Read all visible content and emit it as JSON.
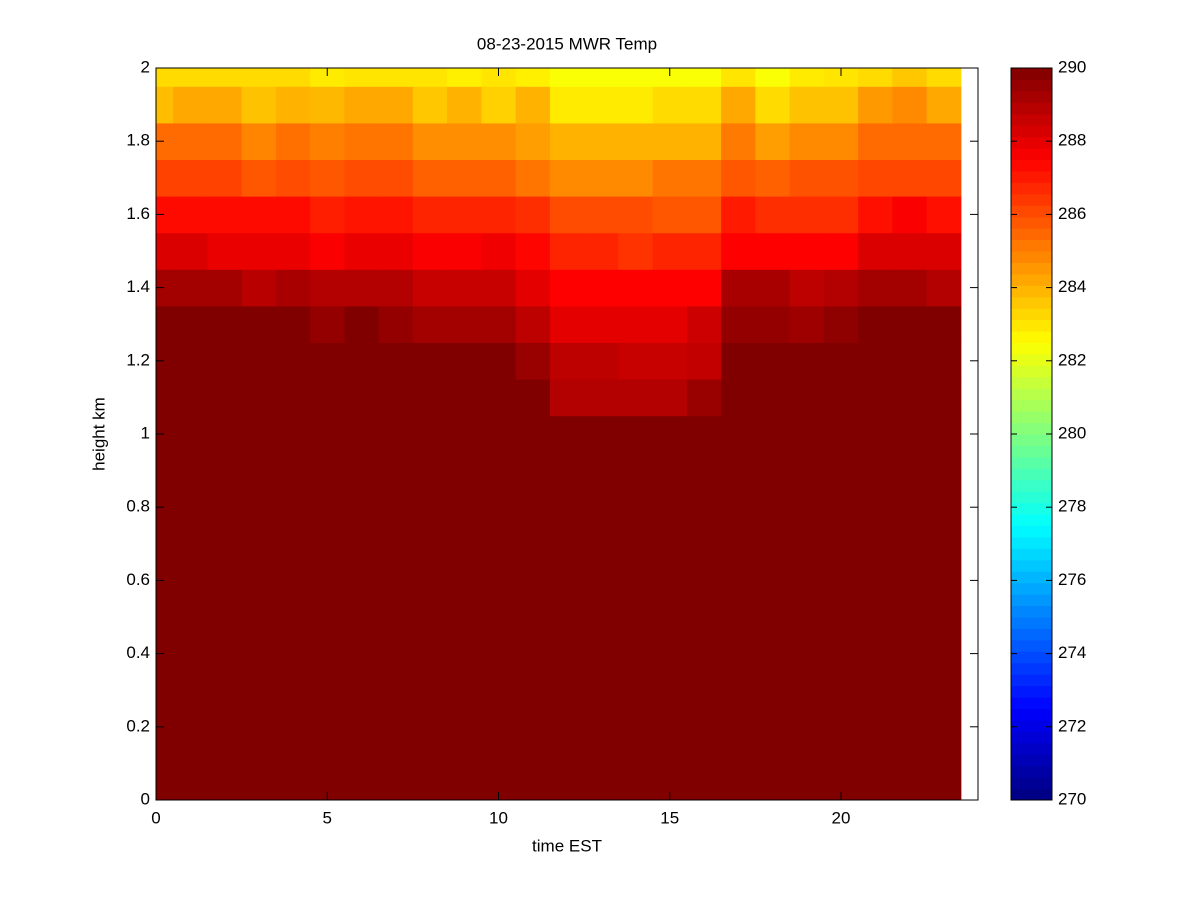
{
  "chart_data": {
    "type": "heatmap",
    "title": "08-23-2015 MWR Temp",
    "x_label": "time EST",
    "y_label": "height km",
    "xlim": [
      0,
      24
    ],
    "xticks": [
      0,
      5,
      10,
      15,
      20
    ],
    "ylim": [
      0,
      2
    ],
    "yticks": [
      0,
      0.2,
      0.4,
      0.6,
      0.8,
      1,
      1.2,
      1.4,
      1.6,
      1.8,
      2
    ],
    "x_edges": [
      0,
      0.5,
      1.5,
      2.5,
      3.5,
      4.5,
      5.5,
      6.5,
      7.5,
      8.5,
      9.5,
      10.5,
      11.5,
      12.5,
      13.5,
      14.5,
      15.5,
      16.5,
      17.5,
      18.5,
      19.5,
      20.5,
      21.5,
      22.5,
      23.5
    ],
    "y_edges": [
      0,
      1.05,
      1.15,
      1.25,
      1.35,
      1.45,
      1.55,
      1.65,
      1.75,
      1.85,
      1.95,
      2
    ],
    "colormap": "jet",
    "clim": [
      270,
      290
    ],
    "cticks": [
      270,
      272,
      274,
      276,
      278,
      280,
      282,
      284,
      286,
      288,
      290
    ],
    "z": [
      [
        290,
        290,
        290,
        290,
        290,
        290,
        290,
        290,
        290,
        290,
        290,
        290,
        290,
        290,
        290,
        290,
        290,
        290,
        290,
        290,
        290,
        290,
        290,
        290
      ],
      [
        290,
        290,
        290,
        290,
        290,
        290,
        290,
        290,
        290,
        290,
        290,
        290,
        289,
        289,
        289,
        289,
        289.5,
        290,
        290,
        290,
        290,
        290,
        290,
        290
      ],
      [
        290,
        290,
        290,
        290,
        290,
        290,
        290,
        290,
        290,
        290,
        290,
        289.5,
        288.8,
        288.8,
        288.6,
        288.6,
        288.7,
        290,
        290,
        290,
        290,
        290,
        290,
        290
      ],
      [
        290,
        290,
        290,
        290,
        290,
        289.6,
        290,
        289.6,
        289.3,
        289.3,
        289.3,
        288.8,
        288,
        288,
        288,
        288,
        288.5,
        289.6,
        289.6,
        289.4,
        289.7,
        290,
        290,
        290
      ],
      [
        289.3,
        289.3,
        289.3,
        288.9,
        289.2,
        289,
        289,
        289,
        288.6,
        288.6,
        288.6,
        288,
        287.5,
        287.5,
        287.5,
        287.5,
        287.5,
        289.2,
        289.2,
        288.8,
        289,
        289.3,
        289.3,
        289
      ],
      [
        288.2,
        288.2,
        287.9,
        287.9,
        287.9,
        287.6,
        287.9,
        287.9,
        287.6,
        287.6,
        287.8,
        287.4,
        286.8,
        286.8,
        286.5,
        286.8,
        286.8,
        287.5,
        287.5,
        287.5,
        287.5,
        288.2,
        288.2,
        288.2
      ],
      [
        287.3,
        287.3,
        287.3,
        287.3,
        287.3,
        286.9,
        287.1,
        287.1,
        286.8,
        286.8,
        286.8,
        286.6,
        286,
        286,
        286,
        285.8,
        285.8,
        287,
        286.6,
        286.6,
        286.6,
        287.2,
        287.6,
        287.2
      ],
      [
        286.2,
        286.2,
        286.2,
        285.8,
        286,
        285.8,
        286,
        286,
        285.6,
        285.6,
        285.6,
        285.2,
        284.8,
        284.8,
        284.8,
        285.2,
        285.2,
        285.8,
        285.6,
        285.9,
        285.9,
        286.1,
        286.1,
        286.1
      ],
      [
        285.4,
        285.4,
        285.4,
        284.9,
        285.3,
        285,
        285.2,
        285.2,
        284.7,
        284.7,
        284.7,
        284.4,
        284,
        284,
        284,
        284,
        284,
        285.1,
        284.4,
        284.8,
        284.8,
        285.4,
        285.4,
        285.4
      ],
      [
        283.8,
        284.2,
        284.2,
        283.7,
        284,
        283.9,
        284.2,
        284.2,
        283.6,
        284,
        283.4,
        284,
        282.9,
        282.9,
        282.9,
        283.2,
        283.2,
        284.2,
        283.2,
        283.7,
        283.7,
        284.5,
        284.8,
        284.2
      ],
      [
        283.2,
        283.2,
        283.2,
        283.2,
        283.2,
        282.9,
        283,
        283,
        283,
        282.8,
        283,
        282.8,
        282.4,
        282.4,
        282.4,
        282.4,
        282.4,
        283,
        282.4,
        282.9,
        283,
        283.2,
        283.6,
        283.2
      ]
    ]
  }
}
